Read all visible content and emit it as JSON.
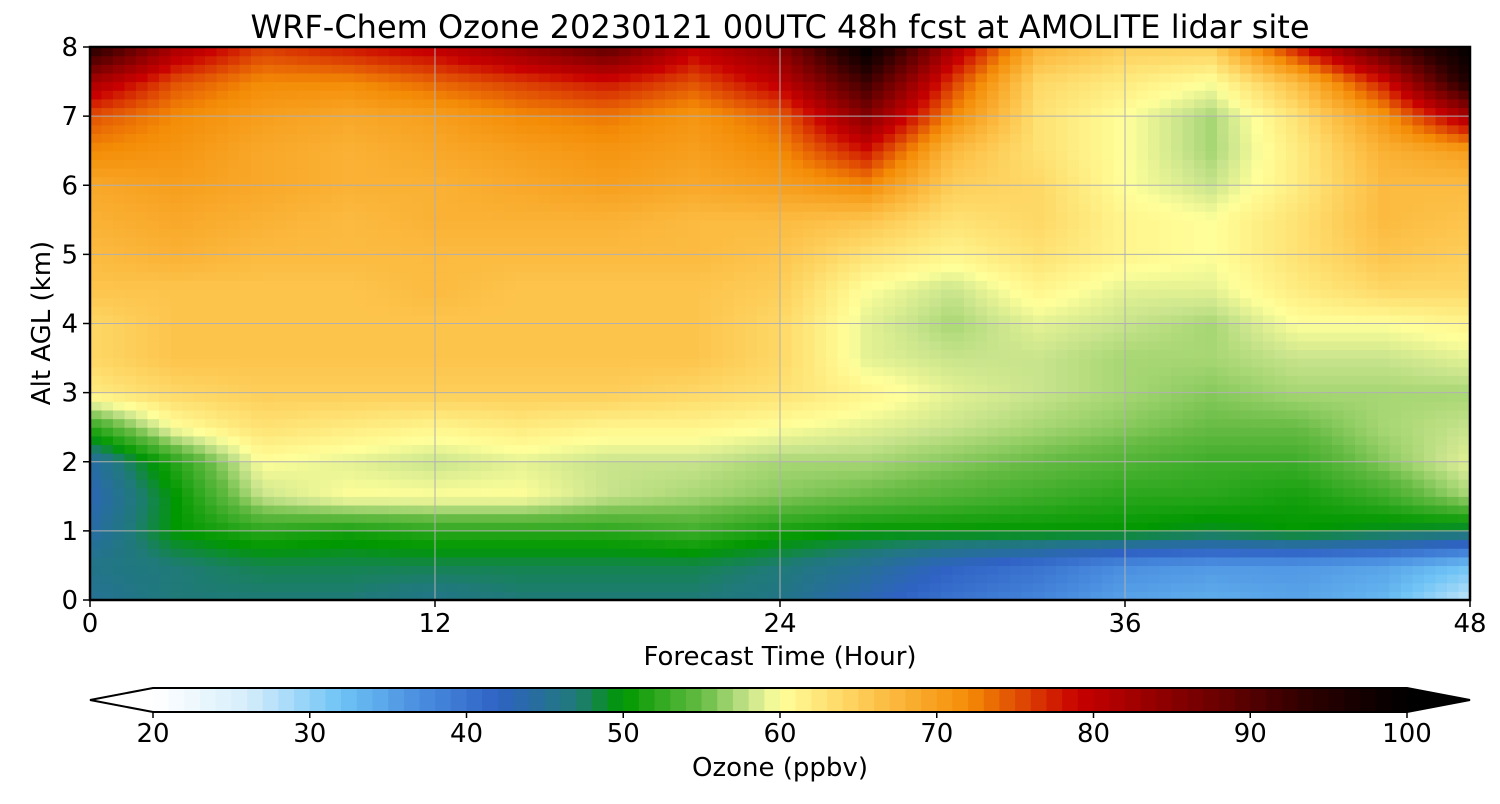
{
  "chart_data": {
    "type": "heatmap",
    "title": "WRF-Chem Ozone  20230121 00UTC 48h fcst at AMOLITE lidar site",
    "xlabel": "Forecast Time (Hour)",
    "ylabel": "Alt AGL (km)",
    "xlim": [
      0,
      48
    ],
    "ylim": [
      0,
      8
    ],
    "xticks": [
      "0",
      "12",
      "24",
      "36",
      "48"
    ],
    "yticks": [
      "0",
      "1",
      "2",
      "3",
      "4",
      "5",
      "6",
      "7",
      "8"
    ],
    "grid": true,
    "colorbar": {
      "label": "Ozone  (ppbv)",
      "range": [
        20,
        100
      ],
      "ticks": [
        "20",
        "30",
        "40",
        "50",
        "60",
        "70",
        "80",
        "90",
        "100"
      ],
      "extend": "both",
      "min_color": "#ffffff",
      "max_color": "#000000"
    },
    "colormap": [
      [
        20,
        "#ffffff"
      ],
      [
        26,
        "#d6eefb"
      ],
      [
        32,
        "#6ec3f5"
      ],
      [
        37,
        "#4a8ee0"
      ],
      [
        42,
        "#2f62c4"
      ],
      [
        47,
        "#1f7a78"
      ],
      [
        50,
        "#009800"
      ],
      [
        55,
        "#66bb44"
      ],
      [
        58,
        "#c8e48c"
      ],
      [
        60,
        "#ffff9a"
      ],
      [
        66,
        "#fdc44c"
      ],
      [
        72,
        "#f48c06"
      ],
      [
        79,
        "#c80000"
      ],
      [
        86,
        "#7e0000"
      ],
      [
        94,
        "#2a0000"
      ],
      [
        100,
        "#000000"
      ]
    ],
    "x": [
      0,
      3,
      6,
      9,
      12,
      15,
      18,
      21,
      24,
      27,
      30,
      33,
      36,
      39,
      42,
      45,
      48
    ],
    "y": [
      0,
      0.5,
      1,
      1.5,
      2,
      2.5,
      3,
      3.5,
      4,
      4.5,
      5,
      5.5,
      6,
      6.5,
      7,
      7.5,
      8
    ],
    "z": [
      [
        45,
        47,
        47,
        47,
        46,
        47,
        47,
        47,
        46,
        43,
        40,
        38,
        35,
        34,
        35,
        33,
        27
      ],
      [
        46,
        47,
        48,
        48,
        48,
        48,
        48,
        48,
        47,
        45,
        42,
        40,
        37,
        36,
        36,
        35,
        32
      ],
      [
        44,
        50,
        52,
        51,
        52,
        52,
        52,
        53,
        51,
        50,
        50,
        50,
        50,
        49,
        50,
        49,
        48
      ],
      [
        43,
        50,
        58,
        60,
        60,
        60,
        58,
        57,
        56,
        55,
        54,
        53,
        52,
        52,
        51,
        53,
        57
      ],
      [
        44,
        52,
        60,
        59,
        58,
        59,
        58,
        58,
        57,
        57,
        56,
        55,
        54,
        53,
        53,
        56,
        59
      ],
      [
        52,
        60,
        63,
        62,
        61,
        62,
        61,
        61,
        60,
        59,
        58,
        57,
        56,
        55,
        55,
        57,
        58
      ],
      [
        62,
        64,
        65,
        65,
        65,
        65,
        65,
        64,
        63,
        61,
        59,
        58,
        57,
        56,
        57,
        57,
        57
      ],
      [
        64,
        66,
        66,
        66,
        66,
        66,
        66,
        66,
        64,
        59,
        58,
        58,
        57,
        57,
        58,
        58,
        59
      ],
      [
        64,
        66,
        66,
        66,
        66,
        66,
        66,
        66,
        64,
        59,
        57,
        59,
        58,
        57,
        60,
        60,
        61
      ],
      [
        66,
        66,
        66,
        66,
        67,
        66,
        66,
        66,
        65,
        60,
        58,
        61,
        59,
        59,
        62,
        64,
        64
      ],
      [
        67,
        68,
        67,
        67,
        67,
        67,
        67,
        67,
        66,
        63,
        61,
        63,
        61,
        60,
        63,
        66,
        65
      ],
      [
        68,
        69,
        68,
        67,
        68,
        68,
        68,
        67,
        67,
        66,
        63,
        64,
        61,
        60,
        63,
        67,
        66
      ],
      [
        69,
        70,
        69,
        68,
        68,
        69,
        70,
        69,
        70,
        72,
        65,
        64,
        60,
        58,
        62,
        67,
        67
      ],
      [
        72,
        71,
        69,
        68,
        69,
        70,
        71,
        70,
        72,
        78,
        67,
        63,
        60,
        57,
        62,
        68,
        70
      ],
      [
        75,
        72,
        70,
        69,
        70,
        72,
        73,
        71,
        74,
        85,
        72,
        63,
        60,
        57,
        63,
        71,
        82
      ],
      [
        82,
        75,
        72,
        72,
        74,
        76,
        78,
        75,
        80,
        92,
        76,
        64,
        62,
        60,
        67,
        78,
        96
      ],
      [
        95,
        82,
        76,
        78,
        80,
        84,
        89,
        80,
        85,
        100,
        82,
        68,
        65,
        65,
        78,
        90,
        100
      ]
    ]
  }
}
